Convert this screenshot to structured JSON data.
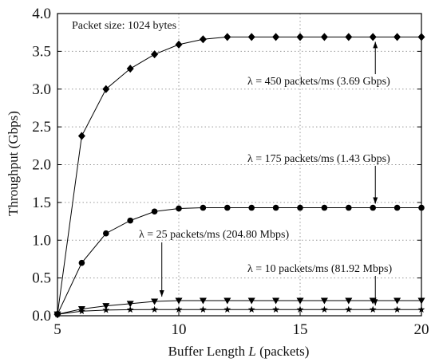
{
  "chart_data": {
    "type": "line",
    "xlabel_text": "Buffer Length",
    "xlabel_var": "L",
    "xlabel_unit": "(packets)",
    "ylabel": "Throughput (Gbps)",
    "xlim": [
      5,
      20
    ],
    "ylim": [
      0,
      4.0
    ],
    "xticks": [
      5,
      10,
      15,
      20
    ],
    "xtick_labels": [
      "5",
      "10",
      "15",
      "20"
    ],
    "yticks": [
      0,
      0.5,
      1.0,
      1.5,
      2.0,
      2.5,
      3.0,
      3.5,
      4.0
    ],
    "ytick_labels": [
      "0.0",
      "0.5",
      "1.0",
      "1.5",
      "2.0",
      "2.5",
      "3.0",
      "3.5",
      "4.0"
    ],
    "grid": "dotted",
    "note": "Packet size: 1024 bytes",
    "series": [
      {
        "name": "λ = 450 packets/ms  (3.69 Gbps)",
        "marker": "diamond",
        "x": [
          5,
          6,
          7,
          8,
          9,
          10,
          11,
          12,
          13,
          14,
          15,
          16,
          17,
          18,
          19,
          20
        ],
        "y": [
          0.02,
          2.38,
          3.0,
          3.27,
          3.46,
          3.59,
          3.66,
          3.69,
          3.69,
          3.69,
          3.69,
          3.69,
          3.69,
          3.69,
          3.69,
          3.69
        ]
      },
      {
        "name": "λ = 175 packets/ms  (1.43 Gbps)",
        "marker": "circle",
        "x": [
          5,
          6,
          7,
          8,
          9,
          10,
          11,
          12,
          13,
          14,
          15,
          16,
          17,
          18,
          19,
          20
        ],
        "y": [
          0.02,
          0.7,
          1.09,
          1.26,
          1.38,
          1.42,
          1.43,
          1.43,
          1.43,
          1.43,
          1.43,
          1.43,
          1.43,
          1.43,
          1.43,
          1.43
        ]
      },
      {
        "name": "λ = 25 packets/ms (204.80 Mbps)",
        "marker": "triangle-down",
        "x": [
          5,
          6,
          7,
          8,
          9,
          10,
          11,
          12,
          13,
          14,
          15,
          16,
          17,
          18,
          19,
          20
        ],
        "y": [
          0.02,
          0.09,
          0.13,
          0.16,
          0.19,
          0.2,
          0.2,
          0.2,
          0.2,
          0.2,
          0.2,
          0.2,
          0.2,
          0.2,
          0.2,
          0.2
        ]
      },
      {
        "name": "λ = 10 packets/ms (81.92 Mbps)",
        "marker": "star",
        "x": [
          5,
          6,
          7,
          8,
          9,
          10,
          11,
          12,
          13,
          14,
          15,
          16,
          17,
          18,
          19,
          20
        ],
        "y": [
          0.02,
          0.06,
          0.075,
          0.08,
          0.082,
          0.082,
          0.082,
          0.082,
          0.082,
          0.082,
          0.082,
          0.082,
          0.082,
          0.082,
          0.082,
          0.082
        ]
      }
    ]
  }
}
